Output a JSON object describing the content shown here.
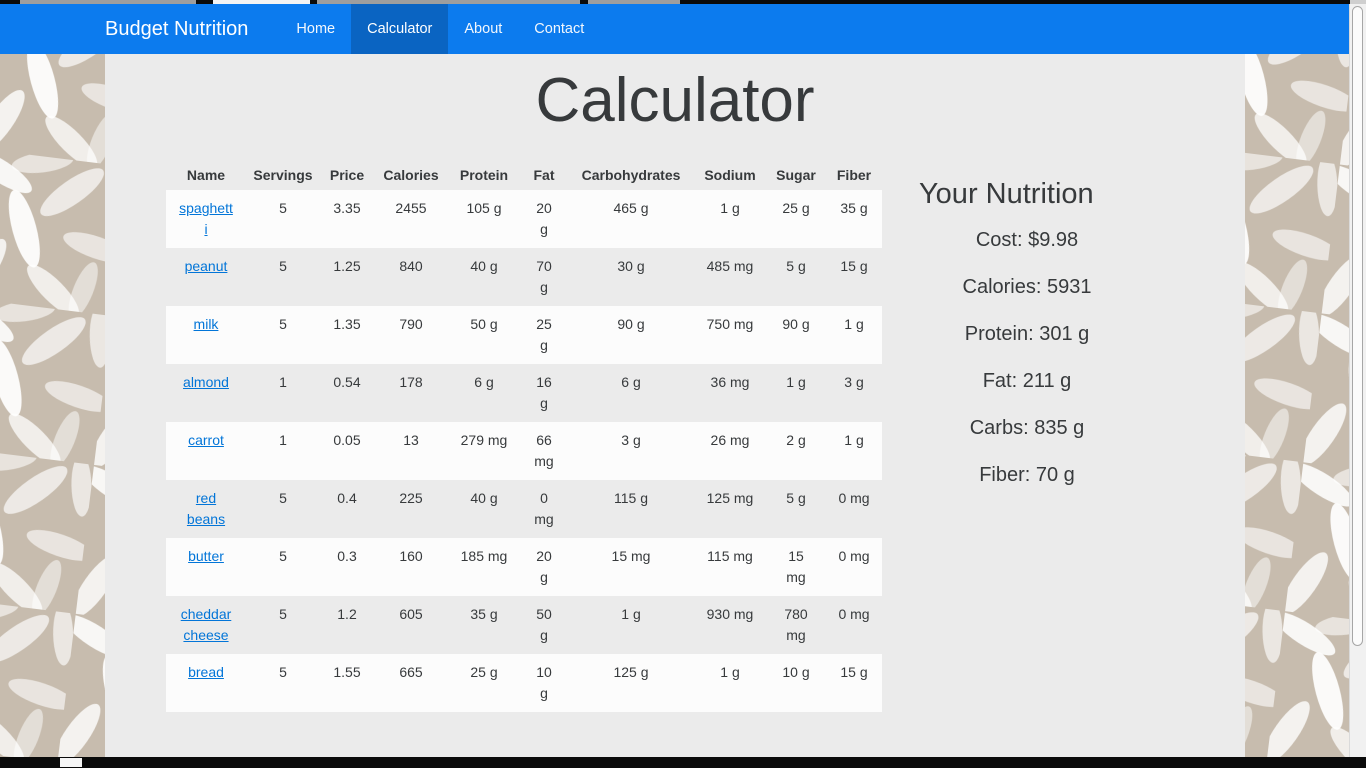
{
  "navbar": {
    "brand": "Budget Nutrition",
    "items": [
      {
        "label": "Home",
        "active": false
      },
      {
        "label": "Calculator",
        "active": true
      },
      {
        "label": "About",
        "active": false
      },
      {
        "label": "Contact",
        "active": false
      }
    ],
    "colors": {
      "bg": "#0c7bee",
      "active_bg": "#0a64c2",
      "text": "#ffffff"
    }
  },
  "page": {
    "title": "Calculator"
  },
  "table": {
    "columns": [
      "Name",
      "Servings",
      "Price",
      "Calories",
      "Protein",
      "Fat",
      "Carbohydrates",
      "Sodium",
      "Sugar",
      "Fiber"
    ],
    "rows": [
      {
        "name": "spaghetti",
        "values": [
          "5",
          "3.35",
          "2455",
          "105 g",
          "20 g",
          "465 g",
          "1 g",
          "25 g",
          "35 g"
        ]
      },
      {
        "name": "peanut",
        "values": [
          "5",
          "1.25",
          "840",
          "40 g",
          "70 g",
          "30 g",
          "485 mg",
          "5 g",
          "15 g"
        ]
      },
      {
        "name": "milk",
        "values": [
          "5",
          "1.35",
          "790",
          "50 g",
          "25 g",
          "90 g",
          "750 mg",
          "90 g",
          "1 g"
        ]
      },
      {
        "name": "almond",
        "values": [
          "1",
          "0.54",
          "178",
          "6 g",
          "16 g",
          "6 g",
          "36 mg",
          "1 g",
          "3 g"
        ]
      },
      {
        "name": "carrot",
        "values": [
          "1",
          "0.05",
          "13",
          "279 mg",
          "66 mg",
          "3 g",
          "26 mg",
          "2 g",
          "1 g"
        ]
      },
      {
        "name": "red beans",
        "values": [
          "5",
          "0.4",
          "225",
          "40 g",
          "0 mg",
          "115 g",
          "125 mg",
          "5 g",
          "0 mg"
        ]
      },
      {
        "name": "butter",
        "values": [
          "5",
          "0.3",
          "160",
          "185 mg",
          "20 g",
          "15 mg",
          "115 mg",
          "15 mg",
          "0 mg"
        ]
      },
      {
        "name": "cheddar cheese",
        "values": [
          "5",
          "1.2",
          "605",
          "35 g",
          "50 g",
          "1 g",
          "930 mg",
          "780 mg",
          "0 mg"
        ]
      },
      {
        "name": "bread",
        "values": [
          "5",
          "1.55",
          "665",
          "25 g",
          "10 g",
          "125 g",
          "1 g",
          "10 g",
          "15 g"
        ]
      }
    ],
    "link_color": "#0275d8"
  },
  "nutrition": {
    "heading": "Your Nutrition",
    "items": [
      "Cost: $9.98",
      "Calories: 5931",
      "Protein: 301 g",
      "Fat: 211 g",
      "Carbs: 835 g",
      "Fiber: 70 g"
    ]
  }
}
